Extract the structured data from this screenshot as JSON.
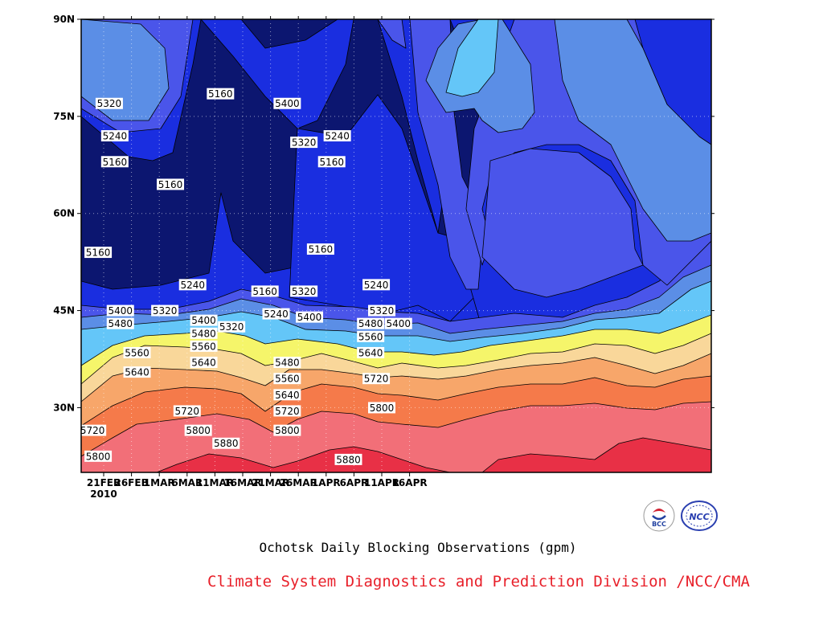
{
  "chart_data": {
    "type": "heatmap",
    "title": "Ochotsk Daily Blocking Observations (gpm)",
    "credit": "Climate System Diagnostics and Prediction Division /NCC/CMA",
    "units": "gpm",
    "grid": true,
    "x_ticks": [
      "21FEB",
      "26FEB",
      "1MAR",
      "6MAR",
      "11MAR",
      "16MAR",
      "21MAR",
      "26MAR",
      "1APR",
      "6APR",
      "11APR",
      "16APR"
    ],
    "x_year": "2010",
    "y_ticks": [
      "30N",
      "45N",
      "60N",
      "75N",
      "90N"
    ],
    "y_range": [
      20,
      90
    ],
    "contour_levels": [
      5160,
      5240,
      5320,
      5400,
      5480,
      5560,
      5640,
      5720,
      5800,
      5880
    ],
    "colors": [
      "#0c1670",
      "#1a2ee0",
      "#4a55ea",
      "#5b8ee6",
      "#64c6f8",
      "#f5f56a",
      "#f9d79a",
      "#f7a66a",
      "#f57a4a",
      "#f26f78",
      "#e83046"
    ],
    "contour_labels": [
      {
        "text": "5320",
        "date": "22FEB",
        "lat": 77
      },
      {
        "text": "5240",
        "date": "23FEB",
        "lat": 72
      },
      {
        "text": "5160",
        "date": "23FEB",
        "lat": 68
      },
      {
        "text": "5160",
        "date": "5MAR",
        "lat": 64.5
      },
      {
        "text": "5160",
        "date": "14MAR",
        "lat": 78.5
      },
      {
        "text": "5400",
        "date": "26MAR",
        "lat": 77
      },
      {
        "text": "5320",
        "date": "29MAR",
        "lat": 71
      },
      {
        "text": "5240",
        "date": "4APR",
        "lat": 72
      },
      {
        "text": "5160",
        "date": "3APR",
        "lat": 68
      },
      {
        "text": "5160",
        "date": "20FEB",
        "lat": 54
      },
      {
        "text": "5240",
        "date": "9MAR",
        "lat": 49
      },
      {
        "text": "5160",
        "date": "22MAR",
        "lat": 48
      },
      {
        "text": "5320",
        "date": "29MAR",
        "lat": 48
      },
      {
        "text": "5160",
        "date": "1APR",
        "lat": 54.5
      },
      {
        "text": "5240",
        "date": "11APR",
        "lat": 49
      },
      {
        "text": "5320",
        "date": "12APR",
        "lat": 45
      },
      {
        "text": "5400",
        "date": "15APR",
        "lat": 43
      },
      {
        "text": "5400",
        "date": "24FEB",
        "lat": 45
      },
      {
        "text": "5320",
        "date": "4MAR",
        "lat": 45
      },
      {
        "text": "5480",
        "date": "24FEB",
        "lat": 43
      },
      {
        "text": "5400",
        "date": "11MAR",
        "lat": 43.5
      },
      {
        "text": "5480",
        "date": "11MAR",
        "lat": 41.5
      },
      {
        "text": "5320",
        "date": "16MAR",
        "lat": 42.5
      },
      {
        "text": "5240",
        "date": "24MAR",
        "lat": 44.5
      },
      {
        "text": "5400",
        "date": "30MAR",
        "lat": 44
      },
      {
        "text": "5480",
        "date": "10APR",
        "lat": 43
      },
      {
        "text": "5560",
        "date": "10APR",
        "lat": 41
      },
      {
        "text": "5560",
        "date": "11MAR",
        "lat": 39.5
      },
      {
        "text": "5560",
        "date": "27FEB",
        "lat": 38.5
      },
      {
        "text": "5640",
        "date": "10APR",
        "lat": 38.5
      },
      {
        "text": "5640",
        "date": "11MAR",
        "lat": 37
      },
      {
        "text": "5480",
        "date": "26MAR",
        "lat": 37
      },
      {
        "text": "5640",
        "date": "27FEB",
        "lat": 35.5
      },
      {
        "text": "5560",
        "date": "26MAR",
        "lat": 34.5
      },
      {
        "text": "5720",
        "date": "11APR",
        "lat": 34.5
      },
      {
        "text": "5640",
        "date": "26MAR",
        "lat": 32
      },
      {
        "text": "5720",
        "date": "8MAR",
        "lat": 29.5
      },
      {
        "text": "5720",
        "date": "26MAR",
        "lat": 29.5
      },
      {
        "text": "5800",
        "date": "12APR",
        "lat": 30
      },
      {
        "text": "5720",
        "date": "19FEB",
        "lat": 26.5
      },
      {
        "text": "5800",
        "date": "10MAR",
        "lat": 26.5
      },
      {
        "text": "5800",
        "date": "26MAR",
        "lat": 26.5
      },
      {
        "text": "5880",
        "date": "15MAR",
        "lat": 24.5
      },
      {
        "text": "5800",
        "date": "20FEB",
        "lat": 22.5
      },
      {
        "text": "5880",
        "date": "6APR",
        "lat": 22
      }
    ]
  },
  "logos": [
    {
      "name": "bcc-logo",
      "text": "BCC"
    },
    {
      "name": "ncc-logo",
      "text": "NCC"
    }
  ]
}
